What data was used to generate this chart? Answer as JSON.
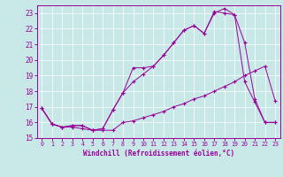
{
  "xlabel": "Windchill (Refroidissement éolien,°C)",
  "bg_color": "#c8e8e8",
  "line_color": "#990099",
  "grid_color": "#b0d0d0",
  "xlim": [
    -0.5,
    23.5
  ],
  "ylim": [
    15,
    23.5
  ],
  "yticks": [
    15,
    16,
    17,
    18,
    19,
    20,
    21,
    22,
    23
  ],
  "xticks": [
    0,
    1,
    2,
    3,
    4,
    5,
    6,
    7,
    8,
    9,
    10,
    11,
    12,
    13,
    14,
    15,
    16,
    17,
    18,
    19,
    20,
    21,
    22,
    23
  ],
  "line1_x": [
    0,
    1,
    2,
    3,
    4,
    5,
    6,
    7,
    8,
    9,
    10,
    11,
    12,
    13,
    14,
    15,
    16,
    17,
    18,
    19,
    20,
    21,
    22,
    23
  ],
  "line1_y": [
    16.9,
    15.9,
    15.7,
    15.7,
    15.6,
    15.5,
    15.5,
    15.5,
    16.0,
    16.1,
    16.3,
    16.5,
    16.7,
    17.0,
    17.2,
    17.5,
    17.7,
    18.0,
    18.3,
    18.6,
    19.0,
    19.3,
    19.6,
    17.4
  ],
  "line2_x": [
    0,
    1,
    2,
    3,
    4,
    5,
    6,
    7,
    8,
    9,
    10,
    11,
    12,
    13,
    14,
    15,
    16,
    17,
    18,
    19,
    20,
    21,
    22,
    23
  ],
  "line2_y": [
    16.9,
    15.9,
    15.7,
    15.8,
    15.8,
    15.5,
    15.6,
    16.8,
    17.9,
    19.5,
    19.5,
    19.6,
    20.3,
    21.1,
    21.9,
    22.2,
    21.7,
    23.1,
    23.0,
    22.9,
    18.6,
    17.3,
    16.0,
    16.0
  ],
  "line3_x": [
    0,
    1,
    2,
    3,
    4,
    5,
    6,
    7,
    8,
    9,
    10,
    11,
    12,
    13,
    14,
    15,
    16,
    17,
    18,
    19,
    20,
    21,
    22,
    23
  ],
  "line3_y": [
    16.9,
    15.9,
    15.7,
    15.8,
    15.8,
    15.5,
    15.6,
    16.8,
    17.9,
    18.6,
    19.1,
    19.6,
    20.3,
    21.1,
    21.9,
    22.2,
    21.7,
    23.0,
    23.3,
    22.9,
    21.1,
    17.5,
    16.0,
    16.0
  ]
}
